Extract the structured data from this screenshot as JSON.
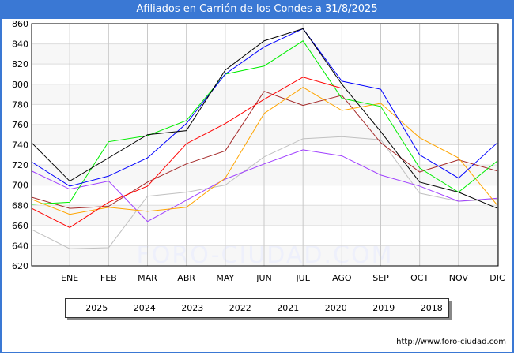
{
  "title": "Afiliados en Carrión de los Condes a 31/8/2025",
  "footer_url": "http://www.foro-ciudad.com",
  "watermark": "FORO-CIUDAD.COM",
  "chart_data": {
    "type": "line",
    "title": "Afiliados en Carrión de los Condes a 31/8/2025",
    "categories": [
      "",
      "ENE",
      "FEB",
      "MAR",
      "ABR",
      "MAY",
      "JUN",
      "JUL",
      "AGO",
      "SEP",
      "OCT",
      "NOV",
      "DIC"
    ],
    "ylim": [
      620,
      860
    ],
    "yticks": [
      620,
      640,
      660,
      680,
      700,
      720,
      740,
      760,
      780,
      800,
      820,
      840,
      860
    ],
    "grid": true,
    "legend_position": "bottom",
    "series": [
      {
        "name": "2025",
        "color": "#ff0000",
        "values": [
          677,
          658,
          683,
          699,
          741,
          761,
          785,
          807,
          796,
          null,
          null,
          null,
          null
        ]
      },
      {
        "name": "2024",
        "color": "#000000",
        "values": [
          742,
          704,
          727,
          750,
          754,
          814,
          843,
          855,
          800,
          753,
          703,
          693,
          677
        ]
      },
      {
        "name": "2023",
        "color": "#0000ff",
        "values": [
          723,
          699,
          709,
          727,
          761,
          810,
          837,
          855,
          803,
          795,
          730,
          707,
          742
        ]
      },
      {
        "name": "2022",
        "color": "#00ee00",
        "values": [
          681,
          683,
          743,
          749,
          764,
          810,
          818,
          843,
          786,
          778,
          717,
          693,
          724
        ]
      },
      {
        "name": "2021",
        "color": "#ffa500",
        "values": [
          686,
          671,
          678,
          674,
          678,
          707,
          771,
          797,
          774,
          781,
          747,
          727,
          680
        ]
      },
      {
        "name": "2020",
        "color": "#a040ff",
        "values": [
          714,
          696,
          704,
          664,
          685,
          706,
          721,
          735,
          729,
          710,
          699,
          684,
          687
        ]
      },
      {
        "name": "2019",
        "color": "#a52a2a",
        "values": [
          688,
          677,
          679,
          703,
          721,
          734,
          793,
          779,
          789,
          742,
          713,
          725,
          714
        ]
      },
      {
        "name": "2018",
        "color": "#c0c0c0",
        "values": [
          656,
          637,
          638,
          689,
          693,
          700,
          728,
          746,
          748,
          745,
          692,
          684,
          686
        ]
      }
    ]
  }
}
